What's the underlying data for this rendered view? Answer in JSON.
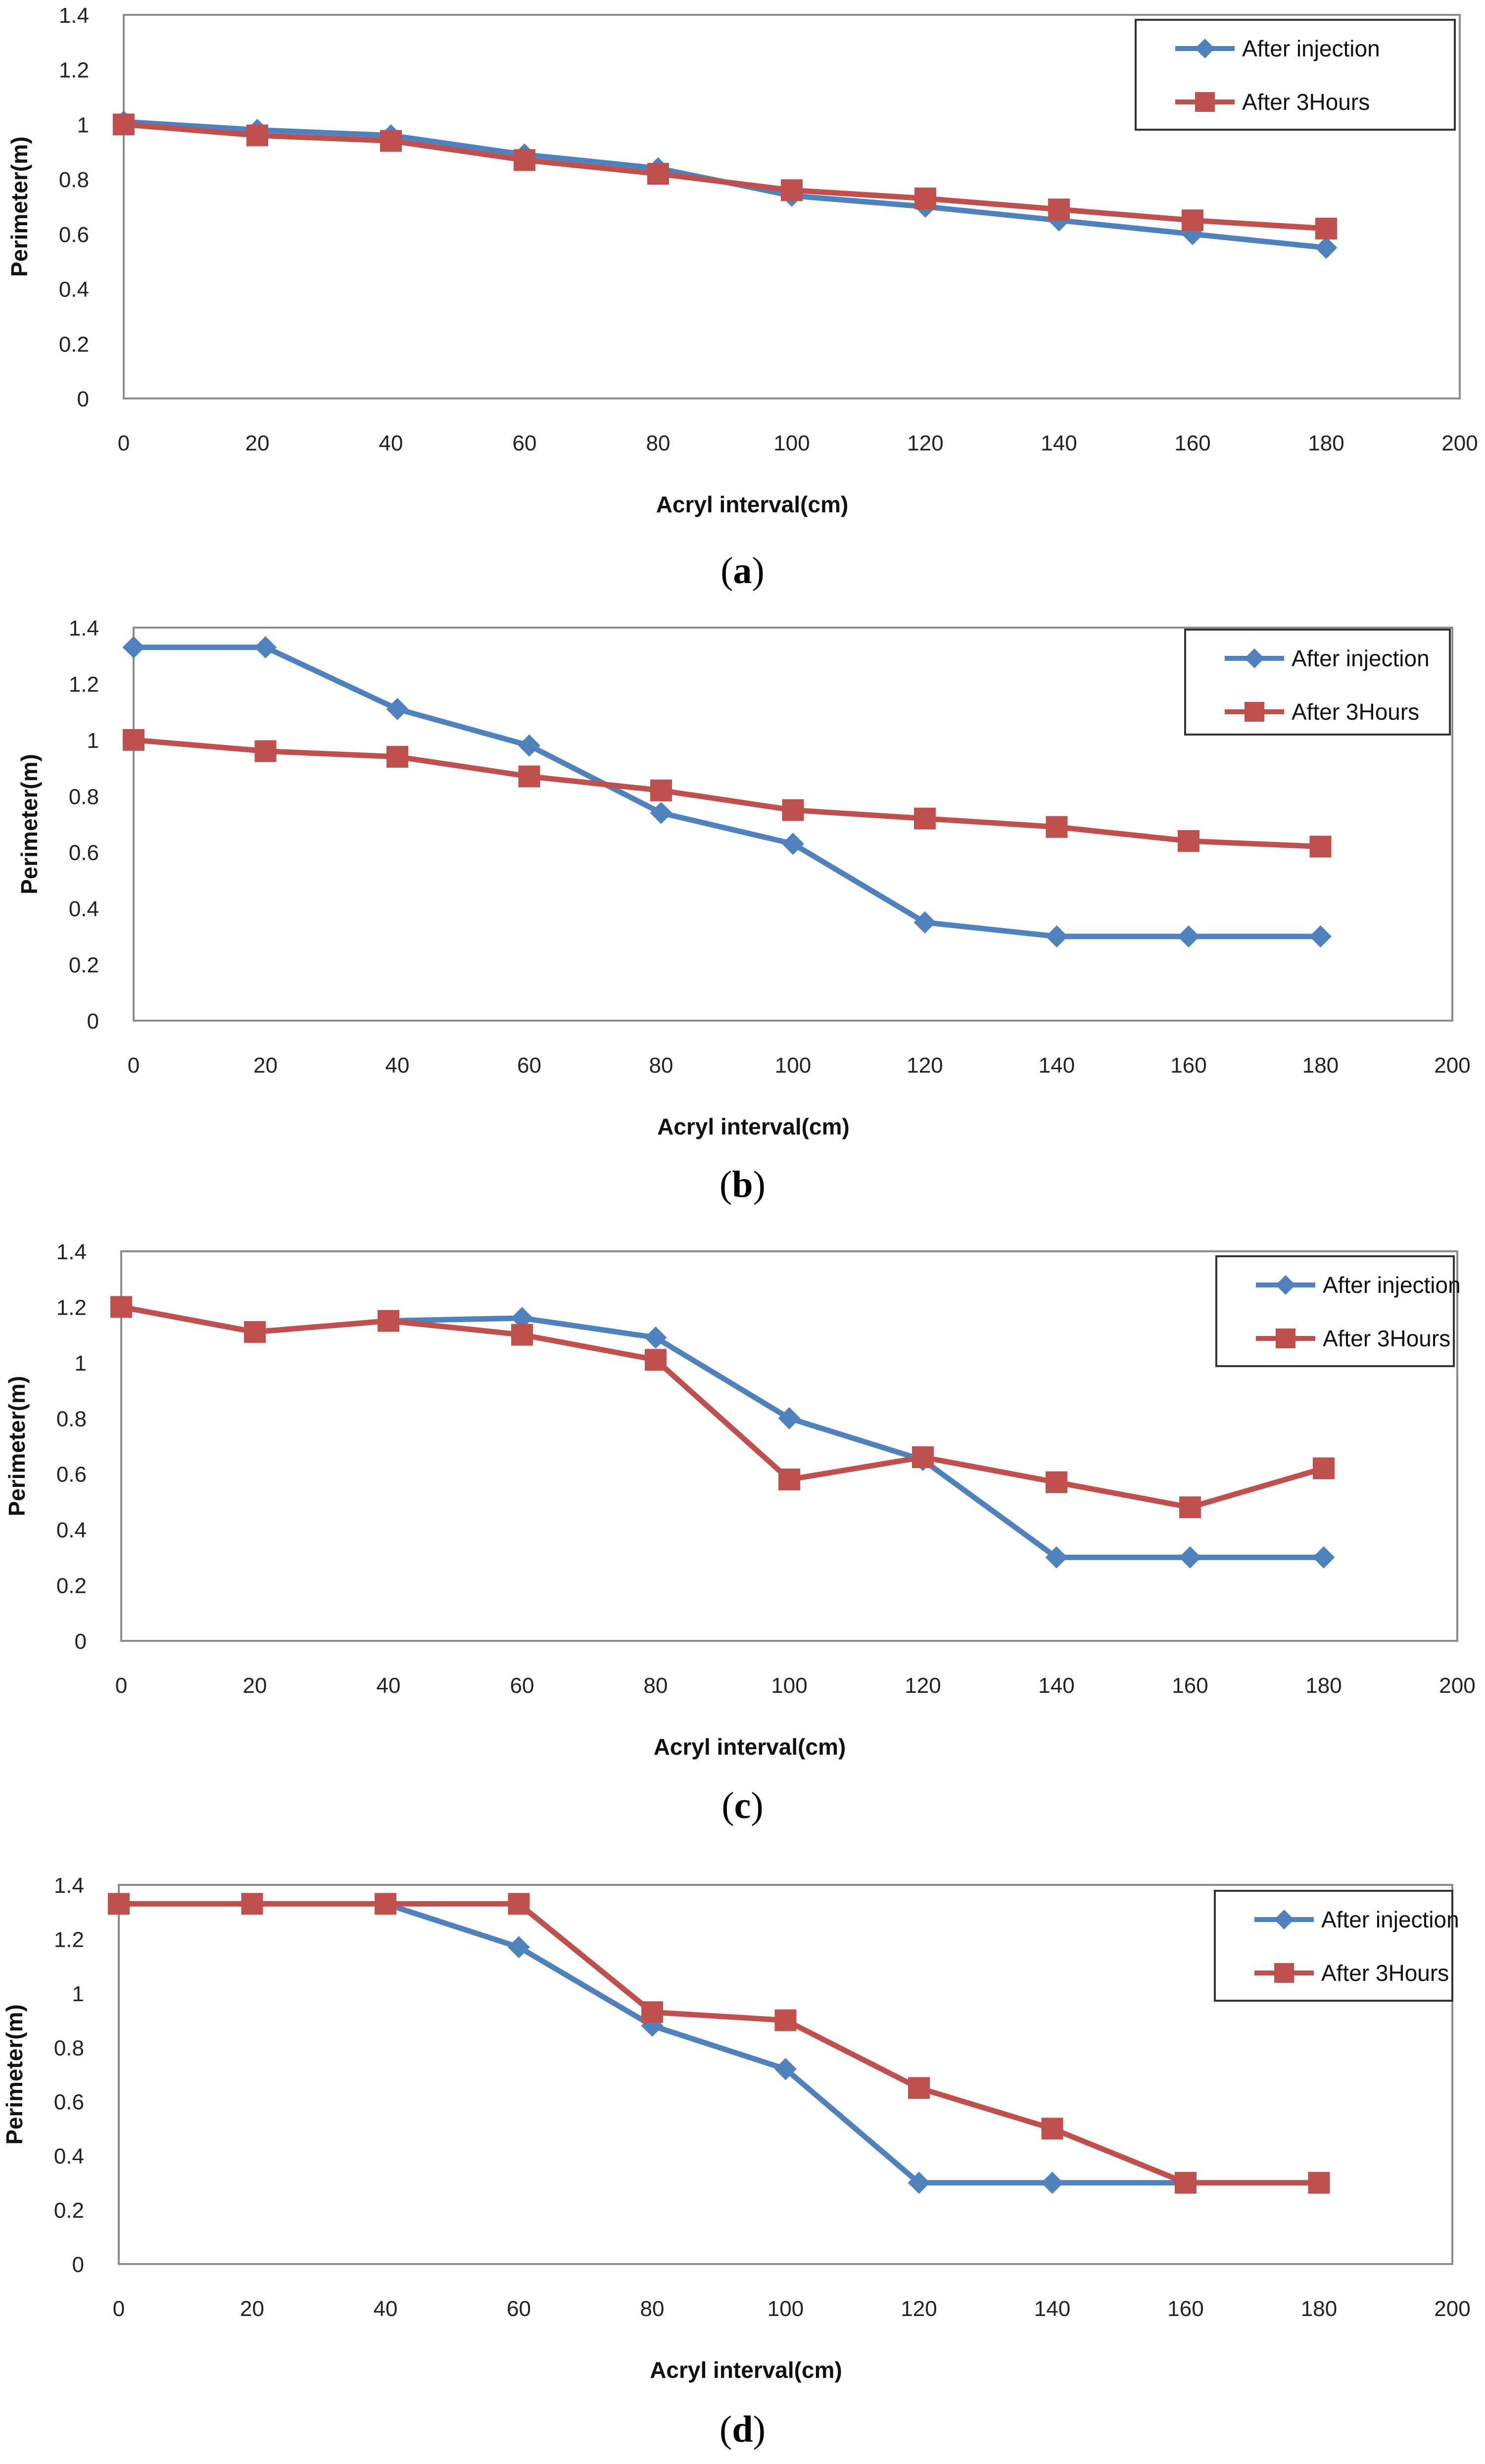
{
  "charts": [
    {
      "type": "line",
      "panel_label": "a",
      "title": "",
      "xlabel": "Acryl interval(cm)",
      "ylabel": "Perimeter(m)",
      "xlim": [
        0,
        200
      ],
      "ylim": [
        0,
        1.4
      ],
      "x_ticks": [
        "0",
        "20",
        "40",
        "60",
        "80",
        "100",
        "120",
        "140",
        "160",
        "180",
        "200"
      ],
      "y_ticks": [
        "0",
        "0.2",
        "0.4",
        "0.6",
        "0.8",
        "1",
        "1.2",
        "1.4"
      ],
      "x": [
        0,
        20,
        40,
        60,
        80,
        100,
        120,
        140,
        160,
        180
      ],
      "legend_position": "top-right",
      "series": [
        {
          "name": "After injection",
          "marker": "diamond",
          "color": "#4F81BD",
          "values": [
            1.01,
            0.98,
            0.96,
            0.89,
            0.84,
            0.74,
            0.7,
            0.65,
            0.6,
            0.55
          ]
        },
        {
          "name": "After 3Hours",
          "marker": "square",
          "color": "#C0504D",
          "values": [
            1.0,
            0.96,
            0.94,
            0.87,
            0.82,
            0.76,
            0.73,
            0.69,
            0.65,
            0.62
          ]
        }
      ]
    },
    {
      "type": "line",
      "panel_label": "b",
      "title": "",
      "xlabel": "Acryl interval(cm)",
      "ylabel": "Perimeter(m)",
      "xlim": [
        0,
        200
      ],
      "ylim": [
        0,
        1.4
      ],
      "x_ticks": [
        "0",
        "20",
        "40",
        "60",
        "80",
        "100",
        "120",
        "140",
        "160",
        "180",
        "200"
      ],
      "y_ticks": [
        "0",
        "0.2",
        "0.4",
        "0.6",
        "0.8",
        "1",
        "1.2",
        "1.4"
      ],
      "x": [
        0,
        20,
        40,
        60,
        80,
        100,
        120,
        140,
        160,
        180
      ],
      "legend_position": "top-right",
      "series": [
        {
          "name": "After injection",
          "marker": "diamond",
          "color": "#4F81BD",
          "values": [
            1.33,
            1.33,
            1.11,
            0.98,
            0.74,
            0.63,
            0.35,
            0.3,
            0.3,
            0.3
          ]
        },
        {
          "name": "After 3Hours",
          "marker": "square",
          "color": "#C0504D",
          "values": [
            1.0,
            0.96,
            0.94,
            0.87,
            0.82,
            0.75,
            0.72,
            0.69,
            0.64,
            0.62
          ]
        }
      ]
    },
    {
      "type": "line",
      "panel_label": "c",
      "title": "",
      "xlabel": "Acryl interval(cm)",
      "ylabel": "Perimeter(m)",
      "xlim": [
        0,
        200
      ],
      "ylim": [
        0,
        1.4
      ],
      "x_ticks": [
        "0",
        "20",
        "40",
        "60",
        "80",
        "100",
        "120",
        "140",
        "160",
        "180",
        "200"
      ],
      "y_ticks": [
        "0",
        "0.2",
        "0.4",
        "0.6",
        "0.8",
        "1",
        "1.2",
        "1.4"
      ],
      "x": [
        0,
        20,
        40,
        60,
        80,
        100,
        120,
        140,
        160,
        180
      ],
      "legend_position": "top-right",
      "series": [
        {
          "name": "After injection",
          "marker": "diamond",
          "color": "#4F81BD",
          "values": [
            1.2,
            1.11,
            1.15,
            1.16,
            1.09,
            0.8,
            0.65,
            0.3,
            0.3,
            0.3
          ]
        },
        {
          "name": "After 3Hours",
          "marker": "square",
          "color": "#C0504D",
          "values": [
            1.2,
            1.11,
            1.15,
            1.1,
            1.01,
            0.58,
            0.66,
            0.57,
            0.48,
            0.62
          ]
        }
      ]
    },
    {
      "type": "line",
      "panel_label": "d",
      "title": "",
      "xlabel": "Acryl interval(cm)",
      "ylabel": "Perimeter(m)",
      "xlim": [
        0,
        200
      ],
      "ylim": [
        0,
        1.4
      ],
      "x_ticks": [
        "0",
        "20",
        "40",
        "60",
        "80",
        "100",
        "120",
        "140",
        "160",
        "180",
        "200"
      ],
      "y_ticks": [
        "0",
        "0.2",
        "0.4",
        "0.6",
        "0.8",
        "1",
        "1.2",
        "1.4"
      ],
      "x": [
        0,
        20,
        40,
        60,
        80,
        100,
        120,
        140,
        160,
        180
      ],
      "legend_position": "top-right",
      "series": [
        {
          "name": "After injection",
          "marker": "diamond",
          "color": "#4F81BD",
          "values": [
            1.33,
            1.33,
            1.33,
            1.17,
            0.88,
            0.72,
            0.3,
            0.3,
            0.3,
            0.3
          ]
        },
        {
          "name": "After 3Hours",
          "marker": "square",
          "color": "#C0504D",
          "values": [
            1.33,
            1.33,
            1.33,
            1.33,
            0.93,
            0.9,
            0.65,
            0.5,
            0.3,
            0.3
          ]
        }
      ]
    }
  ]
}
